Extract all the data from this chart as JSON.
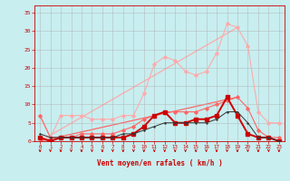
{
  "x": [
    0,
    1,
    2,
    3,
    4,
    5,
    6,
    7,
    8,
    9,
    10,
    11,
    12,
    13,
    14,
    15,
    16,
    17,
    18,
    19,
    20,
    21,
    22,
    23
  ],
  "line_rafales_max": [
    7,
    1,
    7,
    7,
    7,
    6,
    6,
    6,
    7,
    7,
    13,
    21,
    23,
    22,
    19,
    18,
    19,
    24,
    32,
    31,
    26,
    8,
    5,
    5
  ],
  "line_vent_max": [
    7,
    1,
    1,
    1,
    2,
    2,
    2,
    2,
    3,
    4,
    6,
    7,
    8,
    8,
    8,
    8,
    9,
    10,
    11,
    12,
    9,
    3,
    1,
    1
  ],
  "line_rafales_med": [
    1,
    0,
    1,
    1,
    1,
    1,
    1,
    1,
    1,
    2,
    4,
    7,
    8,
    5,
    5,
    6,
    6,
    7,
    12,
    7,
    2,
    1,
    1,
    0
  ],
  "line_vent_med": [
    2,
    1,
    1,
    1,
    1,
    1,
    1,
    1,
    2,
    2,
    3,
    4,
    5,
    5,
    5,
    5,
    5,
    6,
    8,
    8,
    5,
    1,
    1,
    0
  ],
  "line_diag_rafales": [
    [
      0,
      5
    ],
    [
      0,
      31
    ]
  ],
  "line_diag_vent": [
    [
      0,
      5
    ],
    [
      0,
      12
    ]
  ],
  "bg_color": "#c8eef0",
  "grid_color": "#b0b0b0",
  "color_light_pink": "#ffaaaa",
  "color_mid_red": "#ff6666",
  "color_dark_red": "#cc0000",
  "color_black": "#000000",
  "xlabel": "Vent moyen/en rafales ( km/h )",
  "ylim": [
    0,
    37
  ],
  "xlim": [
    -0.5,
    23.5
  ],
  "yticks": [
    0,
    5,
    10,
    15,
    20,
    25,
    30,
    35
  ],
  "xticks": [
    0,
    1,
    2,
    3,
    4,
    5,
    6,
    7,
    8,
    9,
    10,
    11,
    12,
    13,
    14,
    15,
    16,
    17,
    18,
    19,
    20,
    21,
    22,
    23
  ]
}
